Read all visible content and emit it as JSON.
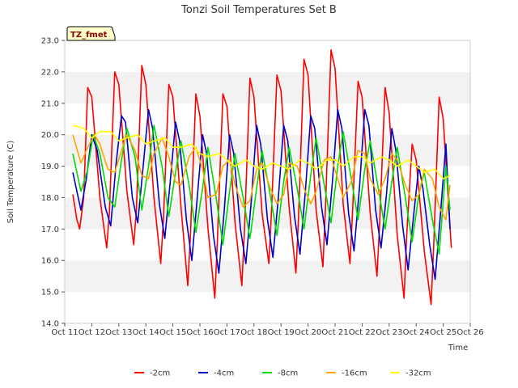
{
  "chart_data": {
    "type": "line",
    "title": "Tonzi Soil Temperatures Set B",
    "xlabel": "Time",
    "ylabel": "Soil Temperature (C)",
    "station_label": "TZ_fmet",
    "ylim": [
      14.0,
      23.0
    ],
    "xlim": [
      0,
      15
    ],
    "yticks": [
      "14.0",
      "15.0",
      "16.0",
      "17.0",
      "18.0",
      "19.0",
      "20.0",
      "21.0",
      "22.0",
      "23.0"
    ],
    "xticks": [
      "Oct 11",
      "Oct 12",
      "Oct 13",
      "Oct 14",
      "Oct 15",
      "Oct 16",
      "Oct 17",
      "Oct 18",
      "Oct 19",
      "Oct 20",
      "Oct 21",
      "Oct 22",
      "Oct 23",
      "Oct 24",
      "Oct 25",
      "Oct 26"
    ],
    "x_unit": "days since Oct 11",
    "grid": "horizontal bands",
    "legend_position": "bottom",
    "series": [
      {
        "name": "-2cm",
        "color": "#ff0000",
        "x": [
          0.3,
          0.45,
          0.55,
          0.7,
          0.85,
          1.0,
          1.3,
          1.55,
          1.65,
          1.85,
          2.0,
          2.3,
          2.55,
          2.65,
          2.85,
          3.0,
          3.3,
          3.55,
          3.65,
          3.85,
          4.0,
          4.3,
          4.55,
          4.65,
          4.85,
          5.0,
          5.3,
          5.55,
          5.65,
          5.85,
          6.0,
          6.3,
          6.55,
          6.65,
          6.85,
          7.0,
          7.3,
          7.55,
          7.65,
          7.85,
          8.0,
          8.3,
          8.55,
          8.65,
          8.85,
          9.0,
          9.3,
          9.55,
          9.65,
          9.85,
          10.0,
          10.3,
          10.55,
          10.65,
          10.85,
          11.0,
          11.3,
          11.55,
          11.65,
          11.85,
          12.0,
          12.3,
          12.55,
          12.65,
          12.85,
          13.0,
          13.3,
          13.55,
          13.65,
          13.85,
          14.0,
          14.3
        ],
        "y": [
          18.1,
          17.3,
          17.0,
          18.0,
          21.5,
          21.2,
          18.0,
          16.4,
          17.5,
          22.0,
          21.6,
          18.2,
          16.5,
          17.6,
          22.2,
          21.6,
          18.0,
          15.9,
          17.3,
          21.6,
          21.2,
          17.7,
          15.2,
          16.8,
          21.3,
          20.6,
          17.0,
          14.8,
          16.7,
          21.3,
          20.9,
          17.2,
          15.2,
          17.0,
          21.8,
          21.2,
          17.5,
          15.9,
          17.6,
          21.9,
          21.4,
          17.7,
          15.6,
          17.4,
          22.4,
          21.9,
          17.6,
          15.8,
          17.8,
          22.7,
          22.1,
          17.8,
          15.9,
          17.6,
          21.7,
          21.2,
          17.5,
          15.5,
          17.2,
          21.5,
          20.7,
          16.8,
          14.8,
          16.8,
          19.7,
          19.2,
          16.3,
          14.6,
          16.5,
          21.2,
          20.5,
          16.4
        ]
      },
      {
        "name": "-4cm",
        "color": "#0000cc",
        "x": [
          0.3,
          0.6,
          0.8,
          1.0,
          1.2,
          1.5,
          1.7,
          1.9,
          2.1,
          2.25,
          2.5,
          2.7,
          2.9,
          3.1,
          3.25,
          3.5,
          3.7,
          3.9,
          4.1,
          4.25,
          4.5,
          4.7,
          4.9,
          5.1,
          5.25,
          5.5,
          5.7,
          5.9,
          6.1,
          6.25,
          6.5,
          6.7,
          6.9,
          7.1,
          7.25,
          7.5,
          7.7,
          7.9,
          8.1,
          8.25,
          8.5,
          8.7,
          8.9,
          9.1,
          9.25,
          9.5,
          9.7,
          9.9,
          10.1,
          10.25,
          10.5,
          10.7,
          10.9,
          11.1,
          11.25,
          11.5,
          11.7,
          11.9,
          12.1,
          12.25,
          12.5,
          12.7,
          12.9,
          13.1,
          13.25,
          13.5,
          13.7,
          13.9,
          14.1,
          14.25
        ],
        "y": [
          18.8,
          17.6,
          18.6,
          20.0,
          19.5,
          17.7,
          17.1,
          19.1,
          20.6,
          20.4,
          18.0,
          17.2,
          19.0,
          20.8,
          20.2,
          17.8,
          16.7,
          18.5,
          20.4,
          19.8,
          17.3,
          16.0,
          18.0,
          20.0,
          19.4,
          16.8,
          15.6,
          17.6,
          20.0,
          19.4,
          17.0,
          15.9,
          17.9,
          20.3,
          19.7,
          17.3,
          16.1,
          18.0,
          20.3,
          19.8,
          17.4,
          16.2,
          18.2,
          20.6,
          20.2,
          17.7,
          16.5,
          18.5,
          20.8,
          20.2,
          17.5,
          16.3,
          18.3,
          20.8,
          20.3,
          17.6,
          16.4,
          18.1,
          20.2,
          19.5,
          17.1,
          15.7,
          17.4,
          19.0,
          18.3,
          16.5,
          15.4,
          17.5,
          19.7,
          17.0
        ]
      },
      {
        "name": "-8cm",
        "color": "#00dd00",
        "x": [
          0.3,
          0.6,
          0.85,
          1.05,
          1.3,
          1.6,
          1.85,
          2.1,
          2.3,
          2.6,
          2.85,
          3.1,
          3.3,
          3.6,
          3.85,
          4.1,
          4.3,
          4.6,
          4.85,
          5.1,
          5.3,
          5.6,
          5.85,
          6.1,
          6.3,
          6.6,
          6.85,
          7.1,
          7.3,
          7.6,
          7.85,
          8.1,
          8.3,
          8.6,
          8.85,
          9.1,
          9.3,
          9.6,
          9.85,
          10.1,
          10.3,
          10.6,
          10.85,
          11.1,
          11.3,
          11.6,
          11.85,
          12.1,
          12.3,
          12.6,
          12.85,
          13.1,
          13.3,
          13.6,
          13.85,
          14.1,
          14.25
        ],
        "y": [
          19.4,
          18.2,
          18.9,
          20.0,
          19.4,
          18.0,
          17.7,
          19.2,
          20.2,
          19.3,
          17.6,
          19.0,
          20.3,
          19.0,
          17.4,
          18.8,
          19.8,
          18.4,
          16.9,
          18.3,
          19.6,
          18.0,
          16.5,
          18.2,
          19.4,
          18.0,
          16.7,
          18.3,
          19.5,
          18.1,
          16.8,
          18.5,
          19.6,
          18.3,
          17.0,
          18.7,
          19.9,
          18.4,
          17.2,
          19.0,
          20.1,
          18.6,
          17.3,
          18.9,
          19.8,
          18.3,
          17.0,
          18.5,
          19.6,
          18.0,
          16.6,
          18.1,
          18.8,
          17.3,
          16.2,
          19.0,
          17.6
        ]
      },
      {
        "name": "-16cm",
        "color": "#ffa500",
        "x": [
          0.3,
          0.6,
          0.85,
          1.1,
          1.3,
          1.6,
          1.85,
          2.1,
          2.3,
          2.6,
          2.85,
          3.1,
          3.3,
          3.6,
          3.85,
          4.1,
          4.3,
          4.6,
          4.85,
          5.1,
          5.3,
          5.6,
          5.85,
          6.1,
          6.3,
          6.6,
          6.85,
          7.1,
          7.3,
          7.6,
          7.85,
          8.1,
          8.3,
          8.6,
          8.85,
          9.1,
          9.3,
          9.6,
          9.85,
          10.1,
          10.3,
          10.6,
          10.85,
          11.1,
          11.3,
          11.6,
          11.85,
          12.1,
          12.3,
          12.6,
          12.85,
          13.1,
          13.3,
          13.6,
          13.85,
          14.1,
          14.25
        ],
        "y": [
          20.0,
          19.1,
          19.6,
          20.0,
          19.7,
          18.9,
          18.8,
          19.5,
          20.0,
          19.5,
          18.7,
          18.6,
          19.4,
          19.9,
          19.3,
          18.5,
          18.4,
          19.3,
          19.6,
          18.9,
          18.0,
          18.1,
          19.0,
          19.2,
          18.4,
          17.7,
          17.9,
          18.9,
          19.1,
          18.3,
          17.8,
          18.1,
          19.1,
          19.0,
          18.3,
          17.8,
          18.2,
          19.2,
          19.3,
          18.6,
          18.0,
          18.5,
          19.5,
          19.4,
          18.6,
          18.1,
          18.6,
          19.4,
          19.2,
          18.4,
          17.9,
          18.1,
          18.9,
          18.6,
          17.7,
          17.3,
          18.4
        ]
      },
      {
        "name": "-32cm",
        "color": "#ffff00",
        "x": [
          0.3,
          0.7,
          1.0,
          1.3,
          1.7,
          2.0,
          2.3,
          2.7,
          3.0,
          3.3,
          3.7,
          4.0,
          4.3,
          4.7,
          5.0,
          5.3,
          5.7,
          6.0,
          6.3,
          6.7,
          7.0,
          7.3,
          7.7,
          8.0,
          8.3,
          8.7,
          9.0,
          9.3,
          9.7,
          10.0,
          10.3,
          10.7,
          11.0,
          11.3,
          11.7,
          12.0,
          12.3,
          12.7,
          13.0,
          13.3,
          13.7,
          14.0,
          14.25
        ],
        "y": [
          20.3,
          20.2,
          19.9,
          20.1,
          20.1,
          19.8,
          19.9,
          20.0,
          19.7,
          19.8,
          19.9,
          19.6,
          19.6,
          19.7,
          19.4,
          19.3,
          19.4,
          19.2,
          19.0,
          19.2,
          19.0,
          18.9,
          19.1,
          19.0,
          18.9,
          19.2,
          19.1,
          18.9,
          19.2,
          19.2,
          19.0,
          19.3,
          19.3,
          19.1,
          19.3,
          19.2,
          19.0,
          19.2,
          19.0,
          18.8,
          18.9,
          18.6,
          18.7
        ]
      }
    ]
  }
}
